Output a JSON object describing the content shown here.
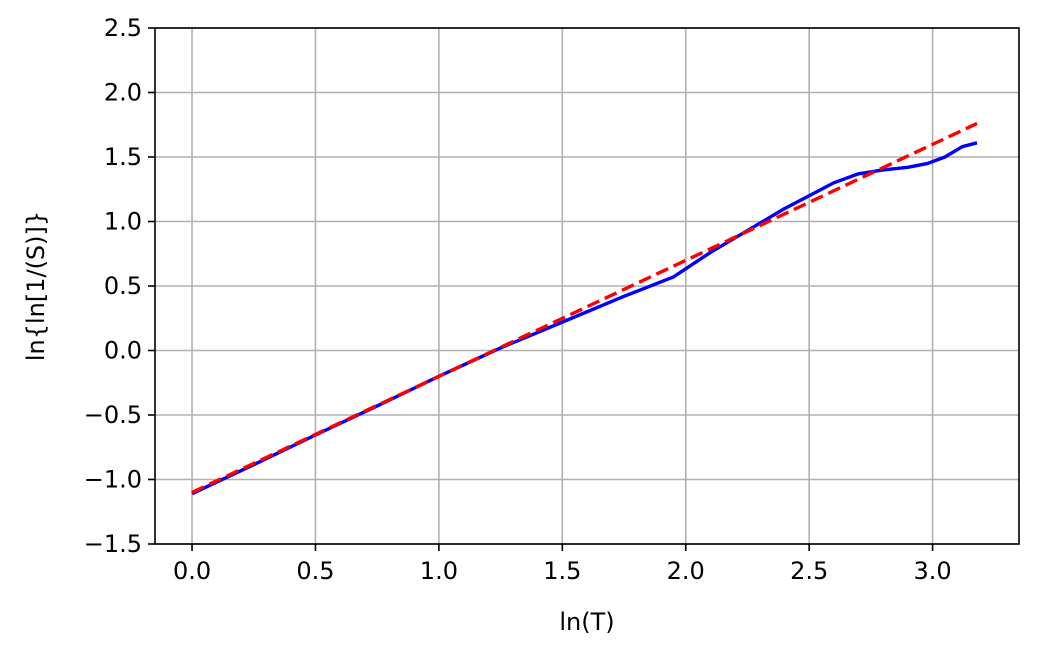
{
  "chart_data": {
    "type": "line",
    "title": "",
    "xlabel": "ln(T)",
    "ylabel": "ln{ln[1/(S)]}",
    "xlim": [
      -0.15,
      3.35
    ],
    "ylim": [
      -1.5,
      2.5
    ],
    "grid": true,
    "x_ticks": [
      0.0,
      0.5,
      1.0,
      1.5,
      2.0,
      2.5,
      3.0
    ],
    "x_tick_labels": [
      "0.0",
      "0.5",
      "1.0",
      "1.5",
      "2.0",
      "2.5",
      "3.0"
    ],
    "y_ticks": [
      -1.5,
      -1.0,
      -0.5,
      0.0,
      0.5,
      1.0,
      1.5,
      2.0,
      2.5
    ],
    "y_tick_labels": [
      "−1.5",
      "−1.0",
      "−0.5",
      "0.0",
      "0.5",
      "1.0",
      "1.5",
      "2.0",
      "2.5"
    ],
    "series": [
      {
        "style": "solid",
        "color": "#0000ff",
        "x": [
          0.0,
          0.25,
          0.5,
          0.75,
          1.0,
          1.25,
          1.5,
          1.75,
          1.95,
          2.1,
          2.25,
          2.4,
          2.5,
          2.6,
          2.7,
          2.8,
          2.9,
          2.98,
          3.05,
          3.12,
          3.18
        ],
        "y": [
          -1.11,
          -0.885,
          -0.655,
          -0.43,
          -0.2,
          0.02,
          0.22,
          0.42,
          0.57,
          0.76,
          0.93,
          1.1,
          1.2,
          1.3,
          1.37,
          1.4,
          1.42,
          1.45,
          1.5,
          1.58,
          1.61
        ]
      },
      {
        "style": "dashed",
        "color": "#ff0000",
        "x": [
          0.0,
          3.18
        ],
        "y": [
          -1.1,
          1.76
        ]
      }
    ]
  }
}
